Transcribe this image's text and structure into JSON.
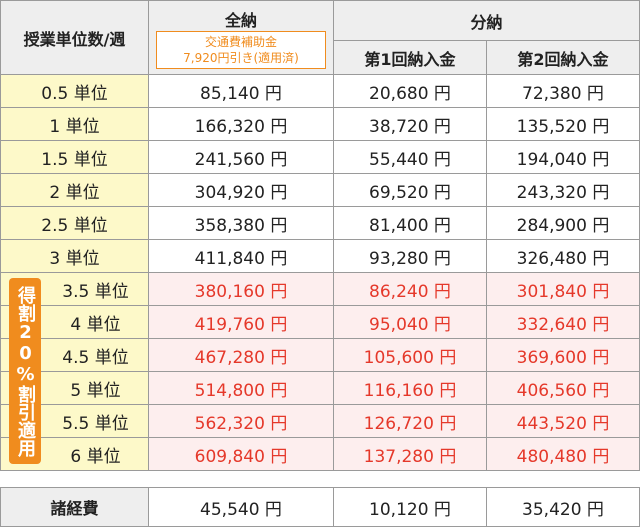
{
  "header": {
    "hours": "授業単位数/週",
    "full": "全納",
    "note": [
      "交通費補助金",
      "7,920円引き(適用済)"
    ],
    "split": "分納",
    "split_cols": [
      "第1回納入金",
      "第2回納入金"
    ]
  },
  "badge": "得割20%割引適用",
  "rows": [
    [
      "0.5 単位",
      "85,140 円",
      "20,680 円",
      "72,380 円"
    ],
    [
      "1 単位",
      "166,320 円",
      "38,720 円",
      "135,520 円"
    ],
    [
      "1.5 単位",
      "241,560 円",
      "55,440 円",
      "194,040 円"
    ],
    [
      "2 単位",
      "304,920 円",
      "69,520 円",
      "243,320 円"
    ],
    [
      "2.5 単位",
      "358,380 円",
      "81,400 円",
      "284,900 円"
    ],
    [
      "3 単位",
      "411,840 円",
      "93,280 円",
      "326,480 円"
    ],
    [
      "3.5 単位",
      "380,160 円",
      "86,240 円",
      "301,840 円"
    ],
    [
      "4 単位",
      "419,760 円",
      "95,040 円",
      "332,640 円"
    ],
    [
      "4.5 単位",
      "467,280 円",
      "105,600 円",
      "369,600 円"
    ],
    [
      "5 単位",
      "514,800 円",
      "116,160 円",
      "406,560 円"
    ],
    [
      "5.5 単位",
      "562,320 円",
      "126,720 円",
      "443,520 円"
    ],
    [
      "6 単位",
      "609,840 円",
      "137,280 円",
      "480,480 円"
    ]
  ],
  "footer": [
    "諸経費",
    "45,540 円",
    "10,120 円",
    "35,420 円"
  ]
}
